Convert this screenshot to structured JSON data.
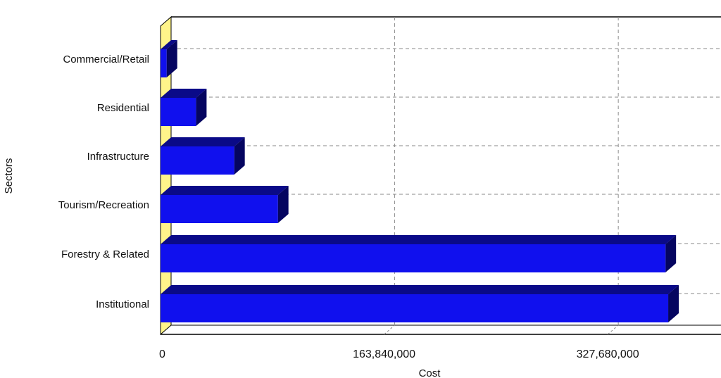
{
  "chart_data": {
    "type": "bar",
    "orientation": "horizontal",
    "title": "",
    "xlabel": "Cost",
    "ylabel": "Sectors",
    "categories": [
      "Commercial/Retail",
      "Residential",
      "Infrastructure",
      "Tourism/Recreation",
      "Forestry & Related",
      "Institutional"
    ],
    "values": [
      4500000,
      26000000,
      54000000,
      86000000,
      370000000,
      372000000
    ],
    "xlim": [
      0,
      405000000
    ],
    "xticks": [
      0,
      163840000,
      327680000
    ],
    "xtick_labels": [
      "0",
      "163,840,000",
      "327,680,000"
    ],
    "grid": true,
    "colors": {
      "bar_front": "#1010ee",
      "bar_top": "#0a0a88",
      "bar_side": "#050560",
      "wall": "#fff48a",
      "grid": "#8a8a8a"
    }
  }
}
